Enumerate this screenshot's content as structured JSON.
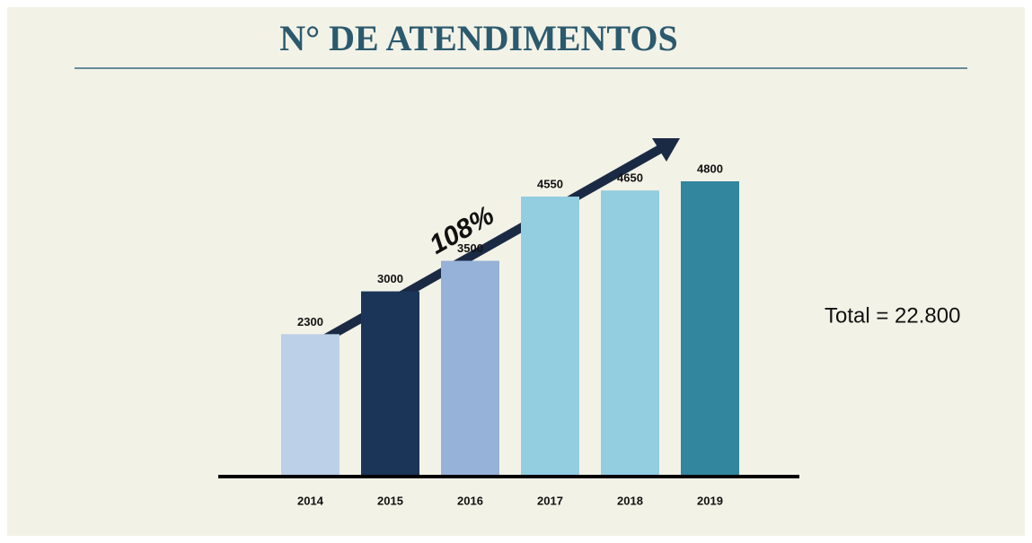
{
  "chart_data": {
    "type": "bar",
    "title": "N° DE ATENDIMENTOS",
    "categories": [
      "2014",
      "2015",
      "2016",
      "2017",
      "2018",
      "2019"
    ],
    "values": [
      2300,
      3000,
      3500,
      4550,
      4650,
      4800
    ],
    "colors": [
      "#bcd0e8",
      "#1b3559",
      "#96b2d8",
      "#93cde0",
      "#93cde0",
      "#32869e"
    ],
    "arrow_label": "108%",
    "total_label": "Total = 22.800"
  }
}
